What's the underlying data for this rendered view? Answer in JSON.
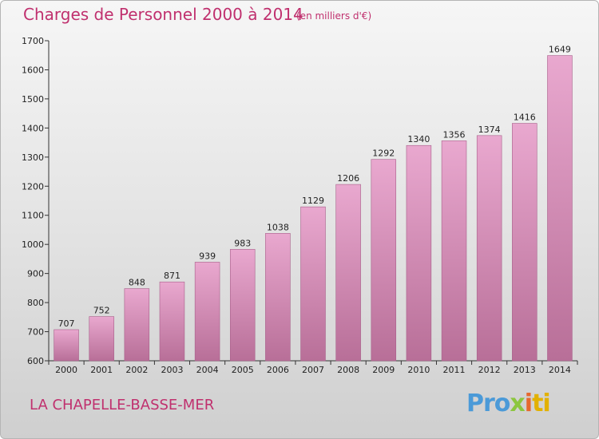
{
  "header": {
    "title": "Charges de Personnel 2000 à 2014",
    "subtitle": "(en milliers d'€)"
  },
  "footer": {
    "commune": "LA CHAPELLE-BASSE-MER",
    "logo": [
      "Pro",
      "x",
      "i",
      "ti"
    ]
  },
  "colors": {
    "title": "#c0306e",
    "bar_light": "#e9a8cf",
    "bar_dark": "#b86f98",
    "axis": "#333333"
  },
  "chart_data": {
    "type": "bar",
    "title": "Charges de Personnel 2000 à 2014",
    "subtitle": "(en milliers d'€)",
    "categories": [
      "2000",
      "2001",
      "2002",
      "2003",
      "2004",
      "2005",
      "2006",
      "2007",
      "2008",
      "2009",
      "2010",
      "2011",
      "2012",
      "2013",
      "2014"
    ],
    "values": [
      707,
      752,
      848,
      871,
      939,
      983,
      1038,
      1129,
      1206,
      1292,
      1340,
      1356,
      1374,
      1416,
      1649
    ],
    "ylim": [
      600,
      1700
    ],
    "yticks": [
      600,
      700,
      800,
      900,
      1000,
      1100,
      1200,
      1300,
      1400,
      1500,
      1600,
      1700
    ],
    "grid": false,
    "legend": "none"
  }
}
